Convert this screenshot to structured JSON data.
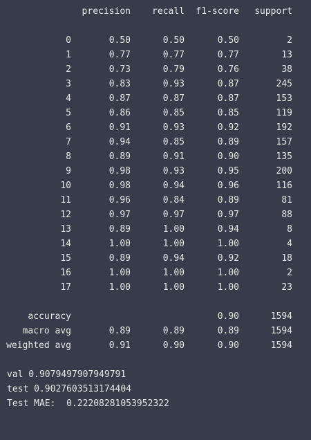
{
  "report": {
    "header": {
      "precision": "precision",
      "recall": "recall",
      "f1": "f1-score",
      "support": "support"
    },
    "rows": [
      {
        "label": "0",
        "precision": "0.50",
        "recall": "0.50",
        "f1": "0.50",
        "support": "2"
      },
      {
        "label": "1",
        "precision": "0.77",
        "recall": "0.77",
        "f1": "0.77",
        "support": "13"
      },
      {
        "label": "2",
        "precision": "0.73",
        "recall": "0.79",
        "f1": "0.76",
        "support": "38"
      },
      {
        "label": "3",
        "precision": "0.83",
        "recall": "0.93",
        "f1": "0.87",
        "support": "245"
      },
      {
        "label": "4",
        "precision": "0.87",
        "recall": "0.87",
        "f1": "0.87",
        "support": "153"
      },
      {
        "label": "5",
        "precision": "0.86",
        "recall": "0.85",
        "f1": "0.85",
        "support": "119"
      },
      {
        "label": "6",
        "precision": "0.91",
        "recall": "0.93",
        "f1": "0.92",
        "support": "192"
      },
      {
        "label": "7",
        "precision": "0.94",
        "recall": "0.85",
        "f1": "0.89",
        "support": "157"
      },
      {
        "label": "8",
        "precision": "0.89",
        "recall": "0.91",
        "f1": "0.90",
        "support": "135"
      },
      {
        "label": "9",
        "precision": "0.98",
        "recall": "0.93",
        "f1": "0.95",
        "support": "200"
      },
      {
        "label": "10",
        "precision": "0.98",
        "recall": "0.94",
        "f1": "0.96",
        "support": "116"
      },
      {
        "label": "11",
        "precision": "0.96",
        "recall": "0.84",
        "f1": "0.89",
        "support": "81"
      },
      {
        "label": "12",
        "precision": "0.97",
        "recall": "0.97",
        "f1": "0.97",
        "support": "88"
      },
      {
        "label": "13",
        "precision": "0.89",
        "recall": "1.00",
        "f1": "0.94",
        "support": "8"
      },
      {
        "label": "14",
        "precision": "1.00",
        "recall": "1.00",
        "f1": "1.00",
        "support": "4"
      },
      {
        "label": "15",
        "precision": "0.89",
        "recall": "0.94",
        "f1": "0.92",
        "support": "18"
      },
      {
        "label": "16",
        "precision": "1.00",
        "recall": "1.00",
        "f1": "1.00",
        "support": "2"
      },
      {
        "label": "17",
        "precision": "1.00",
        "recall": "1.00",
        "f1": "1.00",
        "support": "23"
      }
    ],
    "accuracy": {
      "label": "accuracy",
      "f1": "0.90",
      "support": "1594"
    },
    "macro_avg": {
      "label": "macro avg",
      "precision": "0.89",
      "recall": "0.89",
      "f1": "0.89",
      "support": "1594"
    },
    "weighted_avg": {
      "label": "weighted avg",
      "precision": "0.91",
      "recall": "0.90",
      "f1": "0.90",
      "support": "1594"
    }
  },
  "results": {
    "val": "val 0.9079497907949791",
    "test": "test 0.9027603513174404",
    "mae": "Test MAE:  0.22208281053952322"
  },
  "colors": {
    "background": "#383c4a",
    "text": "#e7e7e7"
  }
}
